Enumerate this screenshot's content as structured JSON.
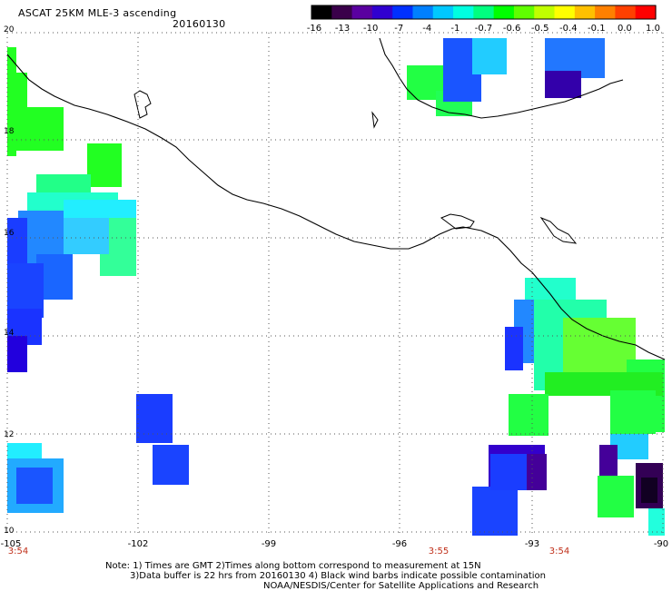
{
  "header": {
    "title": "ASCAT 25KM MLE-3 ascending",
    "date": "20160130"
  },
  "colorbar": {
    "labels": [
      "-16",
      "-13",
      "-10",
      "-7",
      "-4",
      "-1",
      "-0.7",
      "-0.6",
      "-0.5",
      "-0.4",
      "-0.1",
      "0.0",
      "1.0"
    ],
    "colors": [
      "#000000",
      "#3a004a",
      "#5a00a0",
      "#3000d0",
      "#0030ff",
      "#0080ff",
      "#00c8ff",
      "#00ffe0",
      "#00ff80",
      "#00ff00",
      "#60ff00",
      "#c0ff00",
      "#ffff00",
      "#ffc000",
      "#ff8000",
      "#ff4000",
      "#ff0000"
    ]
  },
  "axes": {
    "lat_labels": [
      "20",
      "18",
      "16",
      "14",
      "12",
      "10"
    ],
    "lon_labels": [
      "-105",
      "-102",
      "-99",
      "-96",
      "-93",
      "-90"
    ]
  },
  "times": [
    "3:54",
    "3:55",
    "3:54"
  ],
  "notes": {
    "line1": "Note: 1) Times are GMT 2)Times along bottom correspond to measurement at 15N",
    "line2": "3)Data buffer is 22 hrs from 20160130 4) Black wind barbs indicate possible contamination",
    "line3": "NOAA/NESDIS/Center for Satellite Applications and Research"
  }
}
